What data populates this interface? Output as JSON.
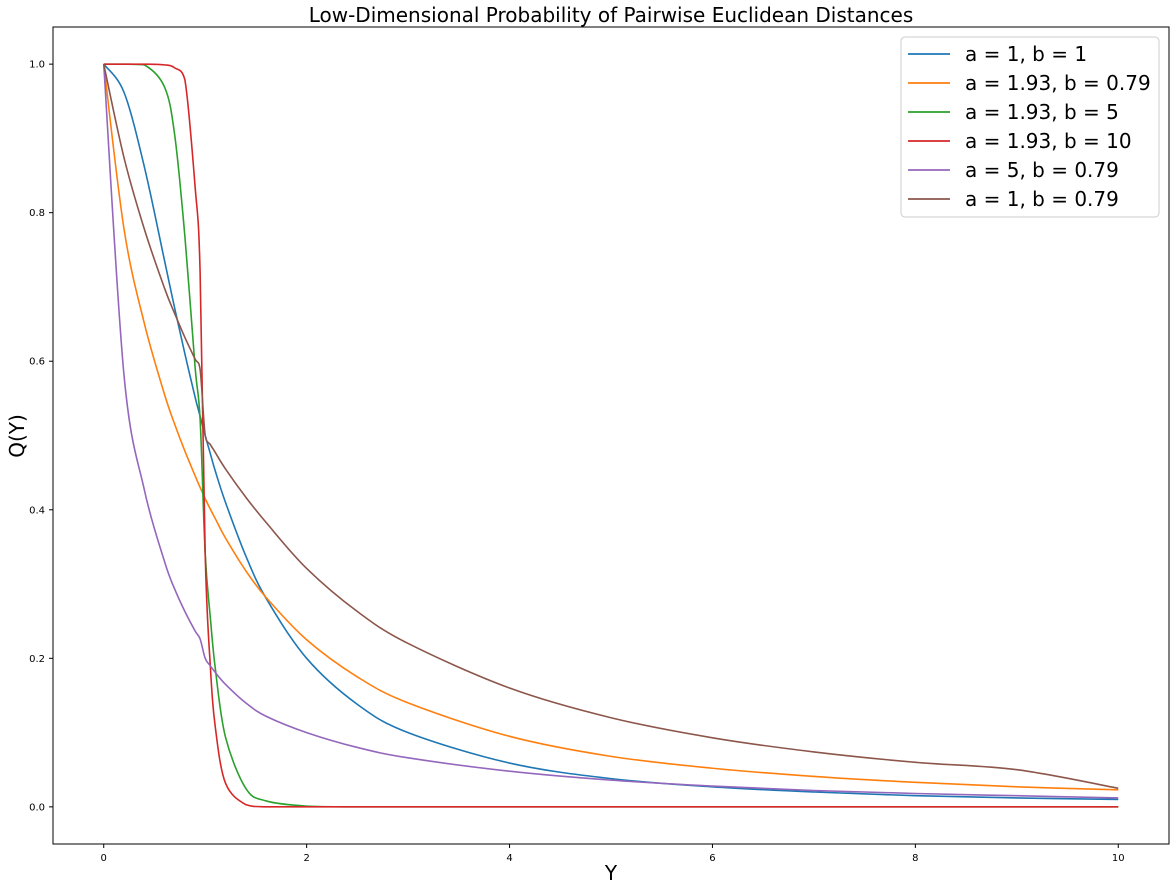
{
  "chart_data": {
    "type": "line",
    "title": "Low-Dimensional Probability of Pairwise Euclidean Distances",
    "xlabel": "Y",
    "ylabel": "Q(Y)",
    "xlim": [
      -0.5,
      10.5
    ],
    "ylim": [
      -0.05,
      1.05
    ],
    "xticks": [
      0,
      2,
      4,
      6,
      8,
      10
    ],
    "xtick_labels": [
      "0",
      "2",
      "4",
      "6",
      "8",
      "10"
    ],
    "yticks": [
      0.0,
      0.2,
      0.4,
      0.6,
      0.8,
      1.0
    ],
    "ytick_labels": [
      "0.0",
      "0.2",
      "0.4",
      "0.6",
      "0.8",
      "1.0"
    ],
    "grid": false,
    "legend_position": "top-right",
    "x": [
      0,
      0.2,
      0.4,
      0.6,
      0.7,
      0.8,
      0.9,
      0.95,
      1.0,
      1.05,
      1.1,
      1.2,
      1.4,
      1.6,
      2.0,
      2.5,
      3.0,
      4.0,
      5.0,
      6.0,
      7.0,
      8.0,
      9.0,
      10.0
    ],
    "series": [
      {
        "name": "a = 1, b = 1",
        "color": "#1f77b4",
        "values": [
          1.0,
          0.962,
          0.862,
          0.735,
          0.671,
          0.61,
          0.552,
          0.526,
          0.5,
          0.476,
          0.452,
          0.41,
          0.338,
          0.281,
          0.2,
          0.138,
          0.1,
          0.059,
          0.038,
          0.027,
          0.02,
          0.015,
          0.012,
          0.01
        ]
      },
      {
        "name": "a = 1.93, b = 0.79",
        "color": "#ff7f0e",
        "values": [
          1.0,
          0.778,
          0.651,
          0.555,
          0.515,
          0.479,
          0.446,
          0.43,
          0.415,
          0.401,
          0.388,
          0.362,
          0.318,
          0.282,
          0.225,
          0.175,
          0.14,
          0.095,
          0.068,
          0.052,
          0.041,
          0.033,
          0.027,
          0.023
        ]
      },
      {
        "name": "a = 1.93, b = 5",
        "color": "#2ca02c",
        "values": [
          1.0,
          1.0,
          0.999,
          0.969,
          0.904,
          0.768,
          0.593,
          0.522,
          0.341,
          0.256,
          0.186,
          0.094,
          0.025,
          0.008,
          0.001,
          0.0,
          0.0,
          0.0,
          0.0,
          0.0,
          0.0,
          0.0,
          0.0,
          0.0
        ]
      },
      {
        "name": "a = 1.93, b = 10",
        "color": "#d62728",
        "values": [
          1.0,
          1.0,
          1.0,
          0.999,
          0.995,
          0.979,
          0.836,
          0.72,
          0.341,
          0.191,
          0.107,
          0.032,
          0.003,
          0.0,
          0.0,
          0.0,
          0.0,
          0.0,
          0.0,
          0.0,
          0.0,
          0.0,
          0.0,
          0.0
        ]
      },
      {
        "name": "a = 5, b = 0.79",
        "color": "#9467bd",
        "values": [
          1.0,
          0.581,
          0.427,
          0.33,
          0.293,
          0.263,
          0.237,
          0.226,
          0.2,
          0.19,
          0.181,
          0.165,
          0.14,
          0.122,
          0.1,
          0.08,
          0.066,
          0.048,
          0.036,
          0.028,
          0.022,
          0.018,
          0.015,
          0.012
        ]
      },
      {
        "name": "a = 1, b = 0.79",
        "color": "#8c564b",
        "values": [
          1.0,
          0.874,
          0.778,
          0.698,
          0.664,
          0.632,
          0.603,
          0.589,
          0.5,
          0.488,
          0.477,
          0.455,
          0.417,
          0.383,
          0.321,
          0.263,
          0.22,
          0.16,
          0.12,
          0.093,
          0.074,
          0.06,
          0.05,
          0.025
        ]
      }
    ]
  }
}
